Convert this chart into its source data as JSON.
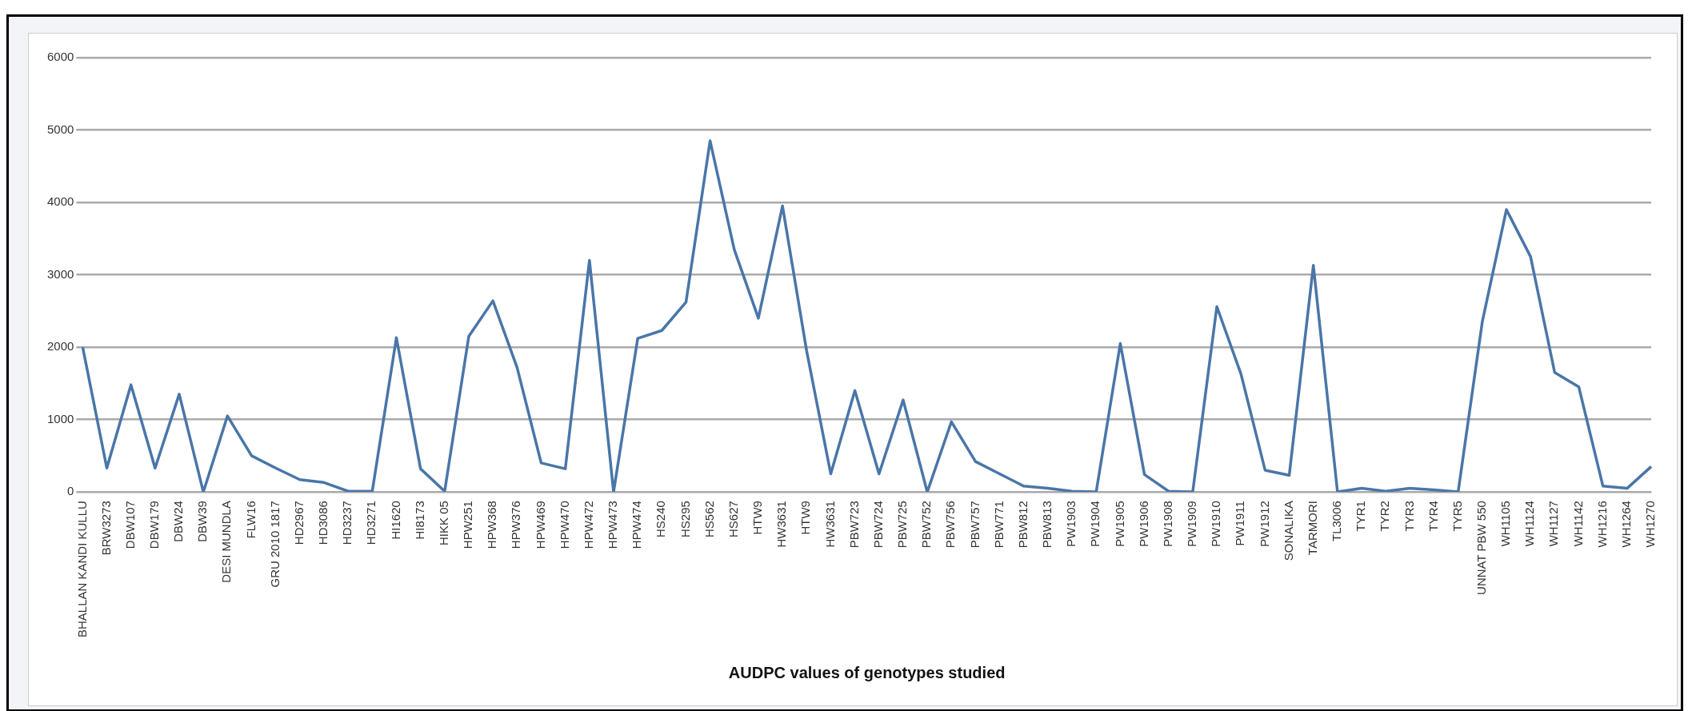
{
  "chart_data": {
    "type": "line",
    "xlabel": "AUDPC values of genotypes studied",
    "categories": [
      "BHALLAN KANDI KULLU",
      "BRW3273",
      "DBW107",
      "DBW179",
      "DBW24",
      "DBW39",
      "DESI MUNDLA",
      "FLW16",
      "GRU 2010 1817",
      "HD2967",
      "HD3086",
      "HD3237",
      "HD3271",
      "HI1620",
      "HI8173",
      "HIKK 05",
      "HPW251",
      "HPW368",
      "HPW376",
      "HPW469",
      "HPW470",
      "HPW472",
      "HPW473",
      "HPW474",
      "HS240",
      "HS295",
      "HS562",
      "HS627",
      "HTW9",
      "HW3631",
      "HTW9",
      "HW3631",
      "PBW723",
      "PBW724",
      "PBW725",
      "PBW752",
      "PBW756",
      "PBW757",
      "PBW771",
      "PBW812",
      "PBW813",
      "PW1903",
      "PW1904",
      "PW1905",
      "PW1906",
      "PW1908",
      "PW1909",
      "PW1910",
      "PW1911",
      "PW1912",
      "SONALIKA",
      "TARMORI",
      "TL3006",
      "TYR1",
      "TYR2",
      "TYR3",
      "TYR4",
      "TYR5",
      "UNNAT PBW 550",
      "WH1105",
      "WH1124",
      "WH1127",
      "WH1142",
      "WH1216",
      "WH1264",
      "WH1270"
    ],
    "series": [
      {
        "color": "#4a76a8",
        "values": [
          2000,
          330,
          1480,
          330,
          1350,
          0,
          1050,
          500,
          330,
          170,
          130,
          10,
          10,
          2130,
          320,
          10,
          2150,
          2640,
          1720,
          400,
          320,
          3200,
          0,
          2120,
          2230,
          2620,
          4850,
          3350,
          2400,
          3950,
          1950,
          250,
          1400,
          250,
          1270,
          0,
          970,
          420,
          250,
          80,
          50,
          10,
          0,
          2050,
          240,
          10,
          0,
          2560,
          1630,
          300,
          230,
          3130,
          0,
          50,
          10,
          50,
          30,
          0,
          2350,
          3900,
          3250,
          1650,
          1450,
          80,
          50,
          350
        ]
      }
    ],
    "ylim": [
      0,
      6000
    ],
    "yticks": [
      0,
      1000,
      2000,
      3000,
      4000,
      5000,
      6000
    ],
    "grid": "y",
    "legend": false,
    "marker": "none",
    "line_style": "solid"
  }
}
